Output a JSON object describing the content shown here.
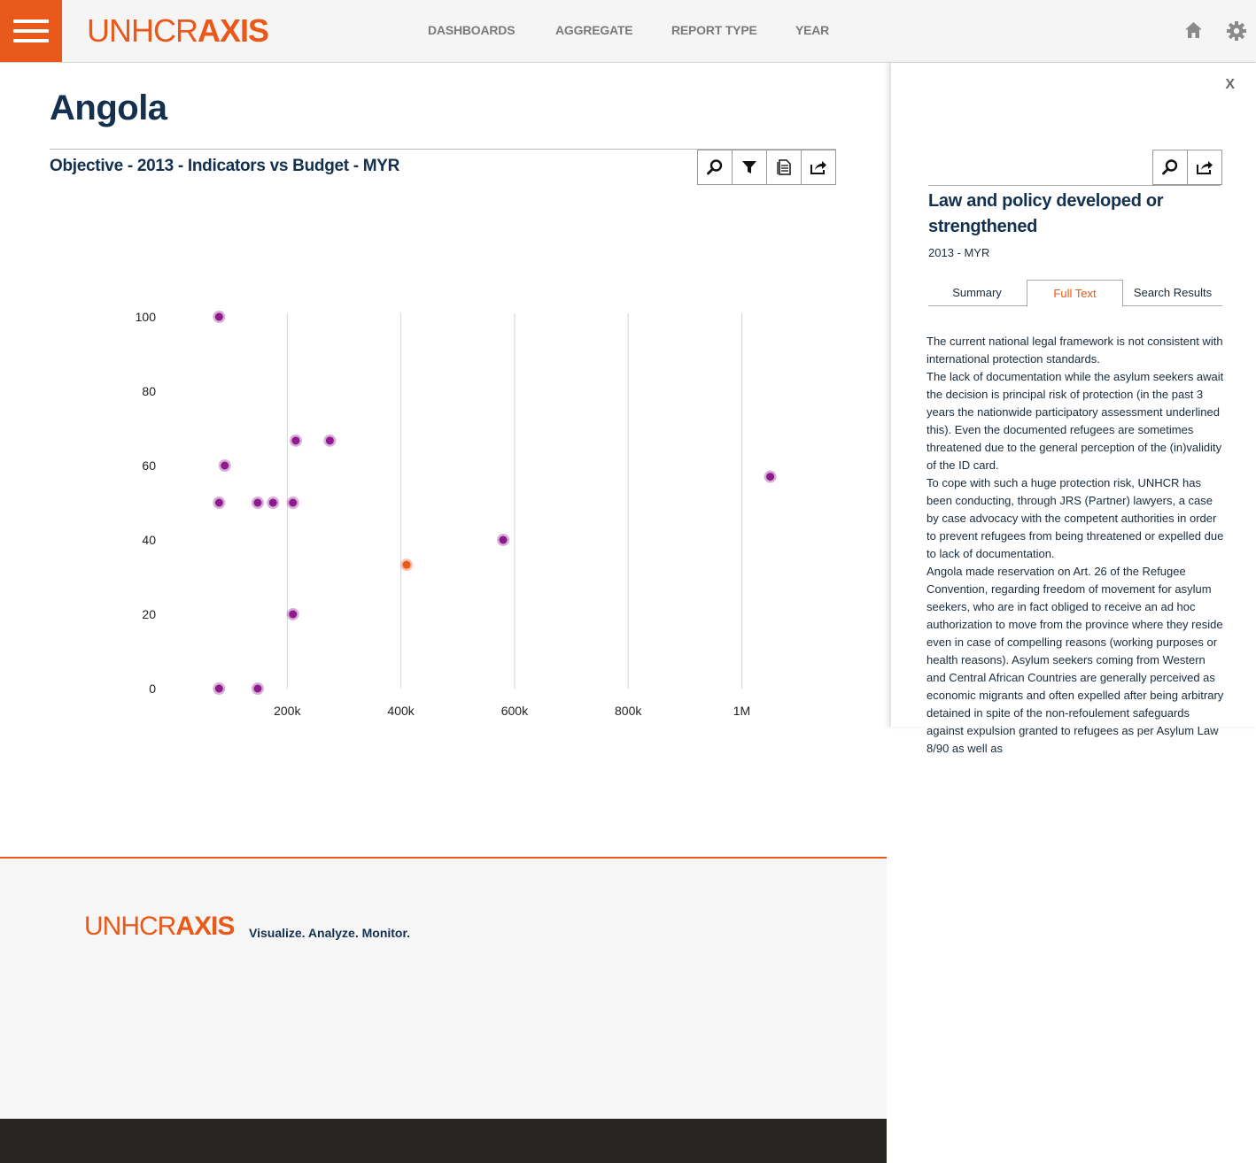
{
  "header": {
    "logo_thin": "UNHCR",
    "logo_bold": "AXIS",
    "nav": [
      {
        "label": "DASHBOARDS"
      },
      {
        "label": "AGGREGATE"
      },
      {
        "label": "REPORT TYPE"
      },
      {
        "label": "YEAR"
      }
    ],
    "accent_color": "#e8591a"
  },
  "page": {
    "title": "Angola",
    "chart_title": "Objective - 2013 - Indicators vs Budget - MYR"
  },
  "chart_data": {
    "type": "scatter",
    "xlabel": "",
    "ylabel": "",
    "x_ticks": [
      "200k",
      "400k",
      "600k",
      "800k",
      "1M"
    ],
    "x_tick_values": [
      200000,
      400000,
      600000,
      800000,
      1000000
    ],
    "y_ticks": [
      "0",
      "20",
      "40",
      "60",
      "80",
      "100"
    ],
    "y_tick_values": [
      0,
      20,
      40,
      60,
      80,
      100
    ],
    "xlim": [
      0,
      1000000
    ],
    "ylim": [
      0,
      100
    ],
    "grid": "vertical",
    "series": [
      {
        "color": "#8e1a8e",
        "points": [
          {
            "x": 80000,
            "y": 100
          },
          {
            "x": 215000,
            "y": 66.7
          },
          {
            "x": 275000,
            "y": 66.7
          },
          {
            "x": 90000,
            "y": 60
          },
          {
            "x": 80000,
            "y": 50
          },
          {
            "x": 148000,
            "y": 50
          },
          {
            "x": 175000,
            "y": 50
          },
          {
            "x": 210000,
            "y": 50
          },
          {
            "x": 1050000,
            "y": 57
          },
          {
            "x": 580000,
            "y": 40
          },
          {
            "x": 210000,
            "y": 20
          },
          {
            "x": 80000,
            "y": 0
          },
          {
            "x": 148000,
            "y": 0
          }
        ]
      },
      {
        "color": "#e8591a",
        "points": [
          {
            "x": 410000,
            "y": 33.3
          }
        ]
      }
    ]
  },
  "footer": {
    "logo_thin": "UNHCR",
    "logo_bold": "AXIS",
    "tagline": "Visualize. Analyze. Monitor."
  },
  "panel": {
    "close_label": "X",
    "title": "Law and policy developed or strengthened",
    "subtitle": "2013 - MYR",
    "tabs": [
      {
        "label": "Summary"
      },
      {
        "label": "Full Text"
      },
      {
        "label": "Search Results"
      }
    ],
    "active_tab": "Full Text",
    "paragraphs": [
      "The current national legal framework is not consistent with international protection standards.",
      "The lack of documentation while the asylum seekers await the decision is principal risk of protection (in the past 3 years the nationwide participatory assessment underlined this). Even the documented refugees are sometimes threatened due to the general perception of the (in)validity of the ID card.",
      "To cope with such a huge protection risk, UNHCR has been conducting, through JRS (Partner) lawyers, a case by case advocacy with the competent authorities in order to prevent refugees from being threatened or expelled due to lack of documentation.",
      "Angola made reservation on Art. 26 of the Refugee Convention, regarding freedom of movement for asylum seekers, who are in fact obliged to receive an ad hoc authorization to move from the province where they reside even in case of compelling reasons (working purposes or health reasons). Asylum seekers coming from Western and Central African Countries are generally perceived as economic migrants and often expelled after being arbitrary detained in spite of the non-refoulement safeguards against expulsion granted to refugees as per Asylum Law 8/90 as well as"
    ]
  }
}
